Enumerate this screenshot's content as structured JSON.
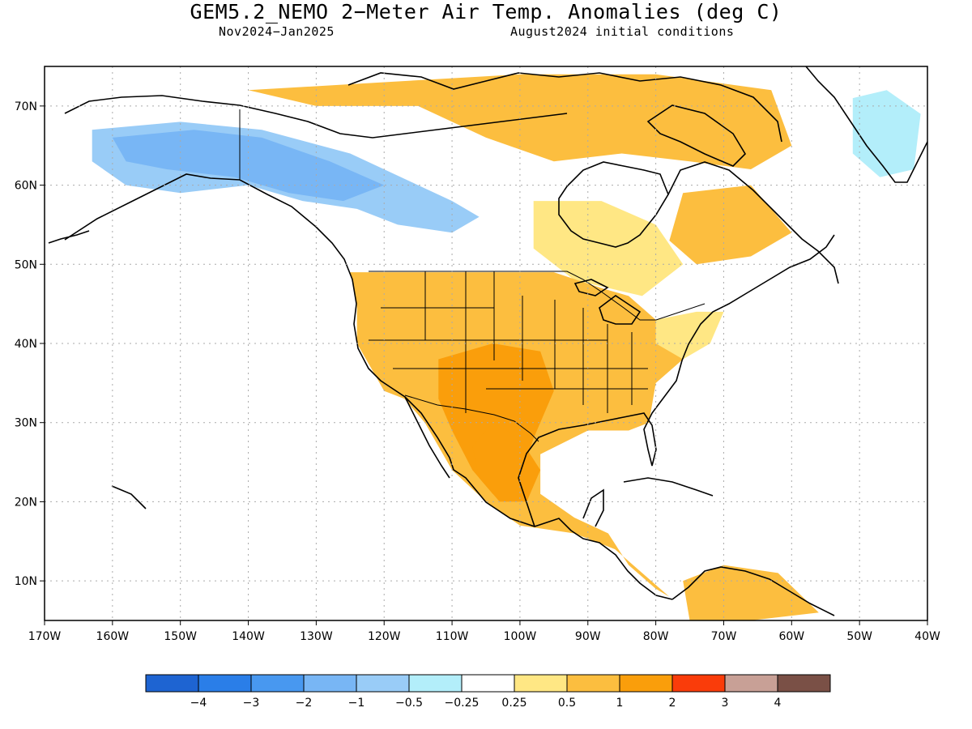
{
  "map": {
    "title": "GEM5.2_NEMO 2−Meter Air Temp. Anomalies (deg C)",
    "period": "Nov2024−Jan2025",
    "initial_conditions": "August2024 initial conditions",
    "extent": {
      "lon_min": -170,
      "lon_max": -40,
      "lat_min": 5,
      "lat_max": 75
    },
    "lon_ticks": [
      "170W",
      "160W",
      "150W",
      "140W",
      "130W",
      "120W",
      "110W",
      "100W",
      "90W",
      "80W",
      "70W",
      "60W",
      "50W",
      "40W"
    ],
    "lat_ticks": [
      "10N",
      "20N",
      "30N",
      "40N",
      "50N",
      "60N",
      "70N"
    ],
    "lon_values": [
      -170,
      -160,
      -150,
      -140,
      -130,
      -120,
      -110,
      -100,
      -90,
      -80,
      -70,
      -60,
      -50,
      -40
    ],
    "lat_values": [
      10,
      20,
      30,
      40,
      50,
      60,
      70
    ],
    "gridlines": "dotted"
  },
  "legend": {
    "colors": [
      "#1e64d2",
      "#2a7ee8",
      "#4898f0",
      "#78b6f5",
      "#99ccf7",
      "#b3eefa",
      "#ffffff",
      "#ffe784",
      "#fcbe3f",
      "#fa9e0b",
      "#fa3c0a",
      "#c8a096",
      "#7a5046"
    ],
    "labels": [
      "−4",
      "−3",
      "−2",
      "−1",
      "−0.5",
      "−0.25",
      "0.25",
      "0.5",
      "1",
      "2",
      "3",
      "4"
    ]
  },
  "anomaly_regions": [
    {
      "name": "alaska-yukon-cold",
      "color": "#99ccf7",
      "lonlat": [
        [
          -163,
          67
        ],
        [
          -150,
          68
        ],
        [
          -138,
          67
        ],
        [
          -125,
          64
        ],
        [
          -115,
          60
        ],
        [
          -110,
          58
        ],
        [
          -106,
          56
        ],
        [
          -110,
          54
        ],
        [
          -118,
          55
        ],
        [
          -124,
          57
        ],
        [
          -132,
          58
        ],
        [
          -140,
          60
        ],
        [
          -150,
          59
        ],
        [
          -158,
          60
        ],
        [
          -163,
          63
        ]
      ]
    },
    {
      "name": "alaska-core-cold",
      "color": "#78b6f5",
      "lonlat": [
        [
          -160,
          66
        ],
        [
          -148,
          67
        ],
        [
          -138,
          66
        ],
        [
          -128,
          63
        ],
        [
          -120,
          60
        ],
        [
          -126,
          58
        ],
        [
          -134,
          59
        ],
        [
          -142,
          61
        ],
        [
          -152,
          62
        ],
        [
          -158,
          63
        ]
      ]
    },
    {
      "name": "greenland-cold",
      "color": "#b3eefa",
      "lonlat": [
        [
          -51,
          71
        ],
        [
          -46,
          72
        ],
        [
          -41,
          69
        ],
        [
          -42,
          62
        ],
        [
          -47,
          61
        ],
        [
          -51,
          64
        ]
      ]
    },
    {
      "name": "north-canada-warm",
      "color": "#fcbe3f",
      "lonlat": [
        [
          -140,
          72
        ],
        [
          -120,
          73
        ],
        [
          -100,
          74
        ],
        [
          -80,
          74
        ],
        [
          -63,
          72
        ],
        [
          -60,
          65
        ],
        [
          -66,
          62
        ],
        [
          -75,
          63
        ],
        [
          -85,
          64
        ],
        [
          -95,
          63
        ],
        [
          -105,
          66
        ],
        [
          -115,
          70
        ],
        [
          -130,
          70
        ]
      ]
    },
    {
      "name": "labrador-warm",
      "color": "#fcbe3f",
      "lonlat": [
        [
          -76,
          59
        ],
        [
          -66,
          60
        ],
        [
          -60,
          54
        ],
        [
          -66,
          51
        ],
        [
          -74,
          50
        ],
        [
          -78,
          53
        ]
      ]
    },
    {
      "name": "hudson-south-light",
      "color": "#ffe784",
      "lonlat": [
        [
          -98,
          58
        ],
        [
          -88,
          58
        ],
        [
          -80,
          55
        ],
        [
          -76,
          50
        ],
        [
          -82,
          46
        ],
        [
          -92,
          48
        ],
        [
          -98,
          52
        ]
      ]
    },
    {
      "name": "conus-warm",
      "color": "#fcbe3f",
      "lonlat": [
        [
          -125,
          49
        ],
        [
          -110,
          49
        ],
        [
          -95,
          49
        ],
        [
          -88,
          47
        ],
        [
          -84,
          46
        ],
        [
          -80,
          43
        ],
        [
          -75,
          42
        ],
        [
          -76,
          38
        ],
        [
          -80,
          35
        ],
        [
          -81,
          30
        ],
        [
          -84,
          29
        ],
        [
          -90,
          29
        ],
        [
          -97,
          26
        ],
        [
          -97,
          21
        ],
        [
          -92,
          18
        ],
        [
          -87,
          16
        ],
        [
          -84,
          12
        ],
        [
          -80,
          9
        ],
        [
          -78,
          8
        ],
        [
          -82,
          11
        ],
        [
          -86,
          14
        ],
        [
          -92,
          16
        ],
        [
          -100,
          17
        ],
        [
          -105,
          20
        ],
        [
          -110,
          24
        ],
        [
          -114,
          30
        ],
        [
          -117,
          33
        ],
        [
          -120,
          34
        ],
        [
          -122,
          37
        ],
        [
          -124,
          40
        ],
        [
          -124,
          45
        ]
      ]
    },
    {
      "name": "southwest-strong-warm",
      "color": "#fa9e0b",
      "lonlat": [
        [
          -112,
          38
        ],
        [
          -104,
          40
        ],
        [
          -97,
          39
        ],
        [
          -95,
          34
        ],
        [
          -98,
          28
        ],
        [
          -100,
          23
        ],
        [
          -104,
          21
        ],
        [
          -107,
          24
        ],
        [
          -110,
          29
        ],
        [
          -112,
          33
        ]
      ]
    },
    {
      "name": "mexico-warm",
      "color": "#fa9e0b",
      "lonlat": [
        [
          -104,
          30
        ],
        [
          -100,
          28
        ],
        [
          -97,
          24
        ],
        [
          -99,
          20
        ],
        [
          -103,
          20
        ],
        [
          -106,
          23
        ],
        [
          -107,
          27
        ]
      ]
    },
    {
      "name": "southamerica-warm",
      "color": "#fcbe3f",
      "lonlat": [
        [
          -76,
          10
        ],
        [
          -70,
          12
        ],
        [
          -62,
          11
        ],
        [
          -56,
          6
        ],
        [
          -66,
          5
        ],
        [
          -75,
          5
        ]
      ]
    },
    {
      "name": "newengland-light",
      "color": "#ffe784",
      "lonlat": [
        [
          -80,
          43
        ],
        [
          -74,
          44
        ],
        [
          -70,
          44
        ],
        [
          -72,
          40
        ],
        [
          -76,
          38
        ],
        [
          -80,
          40
        ]
      ]
    }
  ]
}
